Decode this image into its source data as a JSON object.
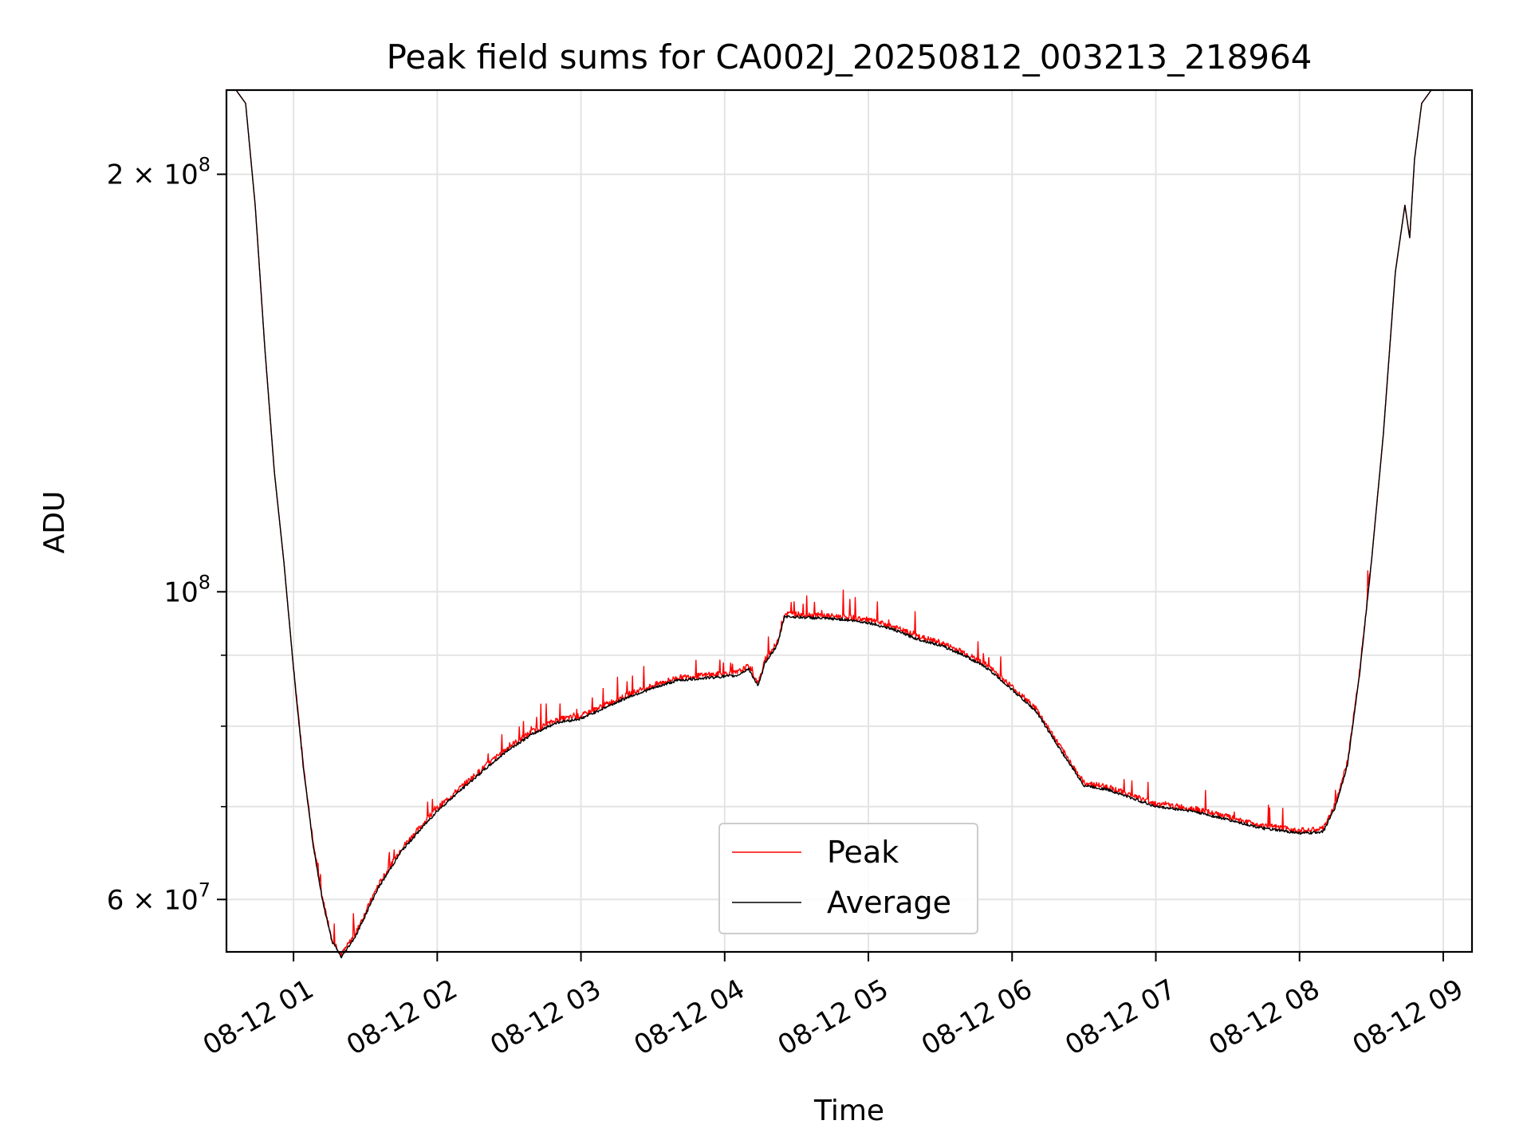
{
  "chart_data": {
    "type": "line",
    "title": "Peak field sums for CA002J_20250812_003213_218964",
    "xlabel": "Time",
    "ylabel": "ADU",
    "yscale": "log",
    "grid": true,
    "legend_position": "lower-center",
    "x_ticks": [
      "08-12 01",
      "08-12 02",
      "08-12 03",
      "08-12 04",
      "08-12 05",
      "08-12 06",
      "08-12 07",
      "08-12 08",
      "08-12 09"
    ],
    "y_ticks": [
      {
        "value": 60000000,
        "base": "6 × 10",
        "exp": "7"
      },
      {
        "value": 100000000,
        "base": "10",
        "exp": "8"
      },
      {
        "value": 200000000,
        "base": "2 × 10",
        "exp": "8"
      }
    ],
    "xlim": [
      "2025-08-12 00:32",
      "2025-08-12 09:12"
    ],
    "ylim": [
      55000000,
      230000000
    ],
    "series": [
      {
        "name": "Peak",
        "color": "#ff0000",
        "noise": true
      },
      {
        "name": "Average",
        "color": "#000000",
        "noise": false
      }
    ],
    "x": [
      "00:32",
      "00:36",
      "00:40",
      "00:44",
      "00:48",
      "00:52",
      "00:56",
      "01:00",
      "01:04",
      "01:08",
      "01:12",
      "01:16",
      "01:20",
      "01:26",
      "01:35",
      "01:45",
      "01:55",
      "02:00",
      "02:10",
      "02:20",
      "02:30",
      "02:40",
      "02:50",
      "03:00",
      "03:10",
      "03:20",
      "03:30",
      "03:40",
      "03:50",
      "04:00",
      "04:05",
      "04:10",
      "04:14",
      "04:17",
      "04:22",
      "04:25",
      "04:35",
      "04:50",
      "05:00",
      "05:10",
      "05:20",
      "05:30",
      "05:40",
      "05:50",
      "06:00",
      "06:10",
      "06:20",
      "06:30",
      "06:40",
      "06:45",
      "06:55",
      "07:00",
      "07:15",
      "07:30",
      "07:45",
      "08:00",
      "08:05",
      "08:10",
      "08:15",
      "08:20",
      "08:25",
      "08:30",
      "08:35",
      "08:40",
      "08:44",
      "08:46",
      "08:48",
      "08:51",
      "08:55",
      "08:58",
      "09:00",
      "09:12"
    ],
    "values": [
      230000000,
      230000000,
      225000000,
      190000000,
      150000000,
      122000000,
      105000000,
      88000000,
      75000000,
      66000000,
      60000000,
      56000000,
      54500000,
      56500000,
      61000000,
      65000000,
      68000000,
      69500000,
      72000000,
      74500000,
      77000000,
      79000000,
      80500000,
      81000000,
      82500000,
      84000000,
      85200000,
      86300000,
      86600000,
      86900000,
      87000000,
      88000000,
      85500000,
      89000000,
      91500000,
      96000000,
      95800000,
      95500000,
      95000000,
      94000000,
      92500000,
      91500000,
      90000000,
      88000000,
      85000000,
      82000000,
      77000000,
      72500000,
      72000000,
      71500000,
      70500000,
      70000000,
      69500000,
      68500000,
      67500000,
      67000000,
      67000000,
      67200000,
      70000000,
      75000000,
      87000000,
      105000000,
      130000000,
      170000000,
      190000000,
      180000000,
      205000000,
      225000000,
      230000000,
      230000000,
      230000000,
      230000000
    ]
  }
}
